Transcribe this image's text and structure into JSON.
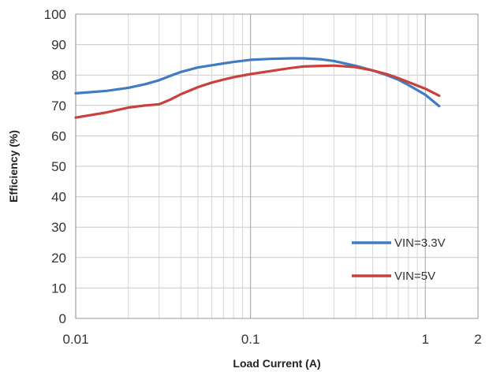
{
  "chart_data": {
    "type": "line",
    "xlabel": "Load Current (A)",
    "ylabel": "Efficiency (%)",
    "xscale": "log",
    "xlim": [
      0.01,
      2
    ],
    "ylim": [
      0,
      100
    ],
    "xticks": [
      {
        "value": 0.01,
        "label": "0.01"
      },
      {
        "value": 0.1,
        "label": "0.1"
      },
      {
        "value": 1,
        "label": "1"
      },
      {
        "value": 2,
        "label": "2"
      }
    ],
    "yticks": [
      0,
      10,
      20,
      30,
      40,
      50,
      60,
      70,
      80,
      90,
      100
    ],
    "grid": true,
    "legend_position": "bottom-right",
    "series": [
      {
        "name": "VIN=3.3V",
        "color": "#3f7cc4",
        "points": [
          [
            0.01,
            74
          ],
          [
            0.015,
            74.8
          ],
          [
            0.02,
            75.8
          ],
          [
            0.025,
            77
          ],
          [
            0.03,
            78.3
          ],
          [
            0.035,
            79.8
          ],
          [
            0.04,
            81
          ],
          [
            0.05,
            82.5
          ],
          [
            0.06,
            83.2
          ],
          [
            0.07,
            83.8
          ],
          [
            0.08,
            84.3
          ],
          [
            0.1,
            85
          ],
          [
            0.13,
            85.3
          ],
          [
            0.17,
            85.5
          ],
          [
            0.2,
            85.5
          ],
          [
            0.25,
            85.2
          ],
          [
            0.3,
            84.6
          ],
          [
            0.4,
            83
          ],
          [
            0.5,
            81.5
          ],
          [
            0.6,
            80
          ],
          [
            0.7,
            78.5
          ],
          [
            0.8,
            76.7
          ],
          [
            1.0,
            73.5
          ],
          [
            1.2,
            69.8
          ]
        ]
      },
      {
        "name": "VIN=5V",
        "color": "#c8413b",
        "points": [
          [
            0.01,
            66
          ],
          [
            0.015,
            67.7
          ],
          [
            0.02,
            69.3
          ],
          [
            0.025,
            70
          ],
          [
            0.03,
            70.4
          ],
          [
            0.035,
            72
          ],
          [
            0.04,
            73.7
          ],
          [
            0.05,
            76
          ],
          [
            0.06,
            77.5
          ],
          [
            0.07,
            78.5
          ],
          [
            0.08,
            79.3
          ],
          [
            0.1,
            80.3
          ],
          [
            0.13,
            81.3
          ],
          [
            0.17,
            82.3
          ],
          [
            0.2,
            82.8
          ],
          [
            0.25,
            83
          ],
          [
            0.3,
            83.1
          ],
          [
            0.4,
            82.6
          ],
          [
            0.5,
            81.5
          ],
          [
            0.6,
            80.3
          ],
          [
            0.7,
            79
          ],
          [
            0.8,
            77.7
          ],
          [
            1.0,
            75.5
          ],
          [
            1.2,
            73.2
          ]
        ]
      }
    ]
  }
}
